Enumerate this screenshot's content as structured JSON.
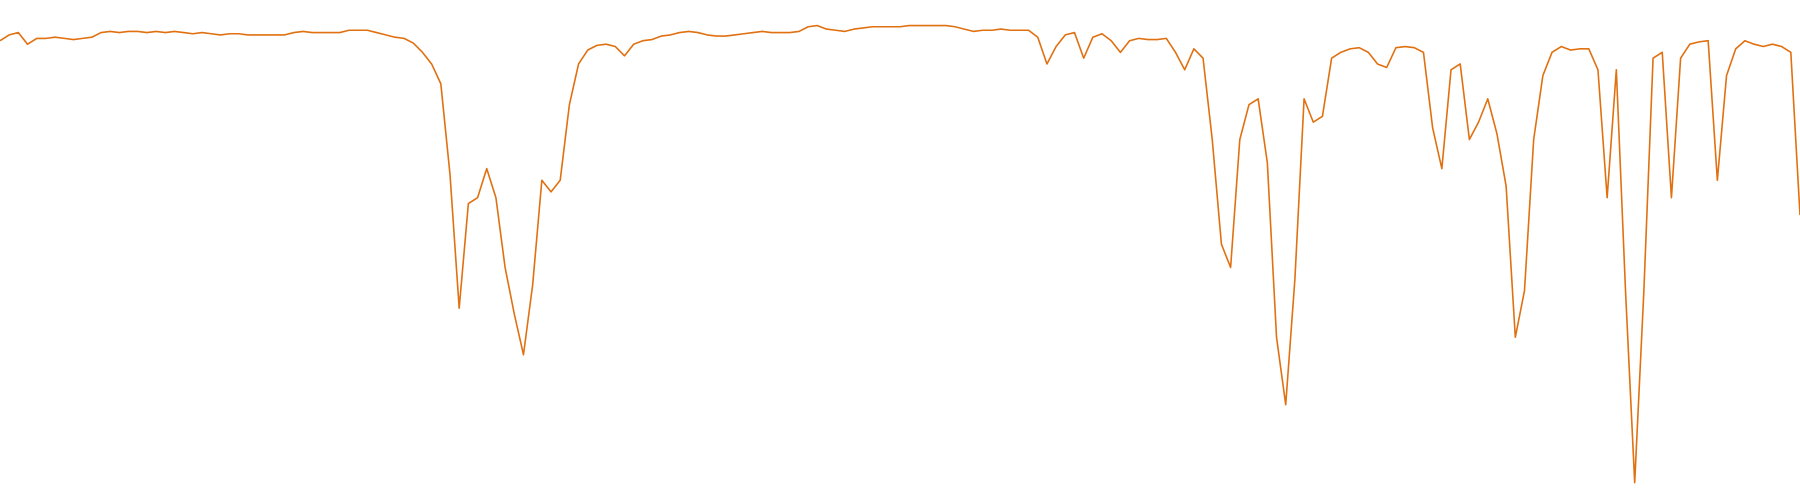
{
  "chart_data": {
    "type": "line",
    "color": "#e07010",
    "categories": [
      null,
      null,
      null,
      null,
      null,
      null,
      null,
      null,
      null,
      null,
      null,
      null,
      null,
      null,
      null,
      null,
      null,
      null,
      null,
      null,
      null,
      null,
      null,
      null,
      null,
      null,
      null,
      null,
      null,
      null,
      null,
      null,
      null,
      null,
      null,
      null,
      null,
      null,
      null,
      null,
      null,
      null,
      null,
      null,
      null,
      null,
      null,
      null,
      null,
      null,
      null,
      null,
      null,
      null,
      null,
      null,
      null,
      null,
      null,
      null,
      null,
      null,
      null,
      null,
      null,
      null,
      null,
      null,
      null,
      null,
      null,
      null,
      null,
      null,
      null,
      null,
      null,
      null,
      null,
      null,
      null,
      null,
      null,
      null,
      null,
      null,
      null,
      null,
      null,
      null,
      null,
      null,
      null,
      null,
      null,
      null,
      null,
      null,
      null,
      null,
      null,
      null,
      null,
      null,
      null,
      null,
      null,
      null,
      null,
      null,
      null,
      null,
      null,
      null,
      null,
      null,
      null,
      null,
      null,
      null,
      null,
      null,
      null,
      null,
      null,
      null,
      null,
      null,
      null,
      null,
      null,
      null,
      null,
      null,
      null,
      null,
      null,
      null,
      null,
      null,
      null,
      null,
      null,
      null,
      null,
      null,
      null,
      null,
      null,
      null,
      null,
      null,
      null,
      null,
      null,
      null,
      null,
      null,
      null,
      null,
      null,
      null,
      null,
      null,
      null,
      null,
      null,
      null,
      null,
      null,
      null,
      null,
      null,
      null,
      null,
      null,
      null,
      null,
      null,
      null,
      null,
      null,
      null,
      null,
      null,
      null,
      null,
      null,
      null,
      null,
      null,
      null,
      null,
      null,
      null,
      null,
      null
    ],
    "values": [
      395,
      400,
      402,
      392,
      397,
      397,
      398,
      397,
      396,
      397,
      398,
      402,
      403,
      402,
      403,
      403,
      402,
      403,
      402,
      403,
      402,
      401,
      402,
      401,
      400,
      401,
      401,
      400,
      400,
      400,
      400,
      400,
      402,
      403,
      402,
      402,
      402,
      402,
      404,
      404,
      404,
      402,
      400,
      398,
      397,
      393,
      385,
      375,
      358,
      280,
      165,
      255,
      260,
      285,
      260,
      200,
      160,
      125,
      185,
      275,
      265,
      275,
      340,
      375,
      387,
      391,
      392,
      390,
      382,
      392,
      395,
      396,
      399,
      400,
      402,
      403,
      402,
      400,
      399,
      399,
      400,
      401,
      402,
      403,
      402,
      402,
      402,
      403,
      407,
      408,
      405,
      404,
      403,
      405,
      406,
      407,
      407,
      407,
      407,
      408,
      408,
      408,
      408,
      408,
      407,
      405,
      403,
      404,
      404,
      405,
      404,
      404,
      404,
      398,
      375,
      390,
      400,
      402,
      380,
      398,
      401,
      395,
      385,
      395,
      397,
      396,
      396,
      397,
      385,
      370,
      388,
      380,
      310,
      220,
      200,
      310,
      340,
      345,
      290,
      140,
      82,
      190,
      345,
      325,
      330,
      380,
      385,
      388,
      389,
      385,
      375,
      372,
      389,
      390,
      389,
      385,
      320,
      285,
      370,
      375,
      310,
      325,
      345,
      315,
      270,
      140,
      180,
      310,
      365,
      385,
      390,
      387,
      388,
      388,
      370,
      260,
      370,
      180,
      15,
      180,
      380,
      385,
      260,
      380,
      392,
      394,
      395,
      275,
      365,
      388,
      395,
      392,
      390,
      392,
      390,
      385,
      245
    ]
  }
}
